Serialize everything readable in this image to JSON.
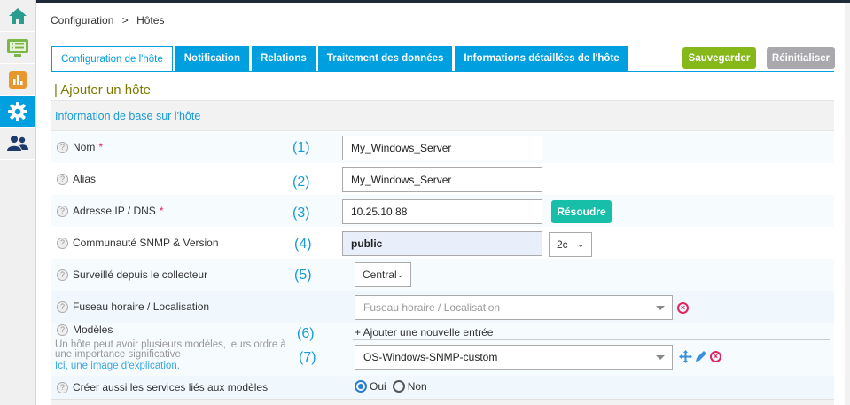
{
  "sidebar": {
    "items": [
      {
        "name": "home",
        "icon": "home-icon",
        "color": "#2a9d8f"
      },
      {
        "name": "monitoring",
        "icon": "monitor-list-icon",
        "color": "#7ab648"
      },
      {
        "name": "reporting",
        "icon": "bar-chart-icon",
        "color": "#e8962e"
      },
      {
        "name": "configuration",
        "icon": "gear-icon",
        "color": "#ffffff",
        "active": true
      },
      {
        "name": "administration",
        "icon": "users-icon",
        "color": "#1e3a6b"
      }
    ]
  },
  "breadcrumb": {
    "items": [
      "Configuration",
      "Hôtes"
    ],
    "separator": ">"
  },
  "tabs": [
    {
      "label": "Configuration de l'hôte",
      "active": true
    },
    {
      "label": "Notification"
    },
    {
      "label": "Relations"
    },
    {
      "label": "Traitement des données"
    },
    {
      "label": "Informations détaillées de l'hôte"
    }
  ],
  "toolbar": {
    "save_label": "Sauvegarder",
    "reset_label": "Réinitialiser",
    "save_color": "#87b81a",
    "reset_color": "#a9a9ad"
  },
  "page_title": "| Ajouter un hôte",
  "section_title": "Information de base sur l'hôte",
  "form": {
    "name": {
      "label": "Nom",
      "required": "*",
      "annotation": "(1)",
      "value": "My_Windows_Server"
    },
    "alias": {
      "label": "Alias",
      "annotation": "(2)",
      "value": "My_Windows_Server"
    },
    "address": {
      "label": "Adresse IP / DNS",
      "required": "*",
      "annotation": "(3)",
      "value": "10.25.10.88",
      "resolve_label": "Résoudre"
    },
    "snmp": {
      "label": "Communauté SNMP & Version",
      "annotation": "(4)",
      "community": "public",
      "version": "2c"
    },
    "poller": {
      "label": "Surveillé depuis le collecteur",
      "annotation": "(5)",
      "value": "Central"
    },
    "timezone": {
      "label": "Fuseau horaire / Localisation",
      "placeholder": "Fuseau horaire / Localisation"
    },
    "templates": {
      "label": "Modèles",
      "annotation_add": "(6)",
      "annotation_sel": "(7)",
      "help": "Un hôte peut avoir plusieurs modèles, leurs ordre à une importance significative",
      "help_link": "Ici, une image d'explication.",
      "add_label": "+ Ajouter une nouvelle entrée",
      "value": "OS-Windows-SNMP-custom"
    },
    "create_services": {
      "label": "Créer aussi les services liés aux modèles",
      "options": [
        "Oui",
        "Non"
      ],
      "selected": "Oui"
    }
  }
}
